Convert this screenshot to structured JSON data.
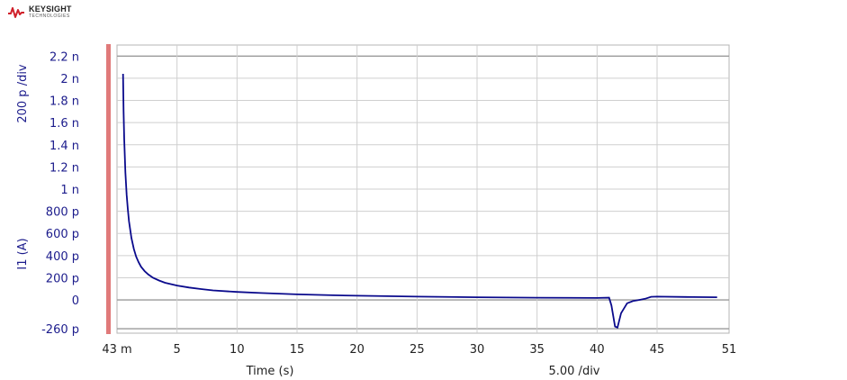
{
  "brand": {
    "name": "KEYSIGHT",
    "sub": "TECHNOLOGIES",
    "logo_color": "#d0202a"
  },
  "chart_data": {
    "type": "line",
    "title": "",
    "xlabel": "Time (s)",
    "ylabel": "I1 (A)",
    "y_scale_label": "200 p /div",
    "x_scale_label": "5.00  /div",
    "xlim": [
      0.043,
      51
    ],
    "ylim": [
      -2.6e-10,
      2.2e-09
    ],
    "grid": true,
    "x_ticks": [
      {
        "value": 0.043,
        "label": "43 m"
      },
      {
        "value": 5,
        "label": "5"
      },
      {
        "value": 10,
        "label": "10"
      },
      {
        "value": 15,
        "label": "15"
      },
      {
        "value": 20,
        "label": "20"
      },
      {
        "value": 25,
        "label": "25"
      },
      {
        "value": 30,
        "label": "30"
      },
      {
        "value": 35,
        "label": "35"
      },
      {
        "value": 40,
        "label": "40"
      },
      {
        "value": 45,
        "label": "45"
      },
      {
        "value": 51,
        "label": "51"
      }
    ],
    "y_ticks": [
      {
        "value": 2.2e-09,
        "label": "2.2 n"
      },
      {
        "value": 2e-09,
        "label": "2 n"
      },
      {
        "value": 1.8e-09,
        "label": "1.8 n"
      },
      {
        "value": 1.6e-09,
        "label": "1.6 n"
      },
      {
        "value": 1.4e-09,
        "label": "1.4 n"
      },
      {
        "value": 1.2e-09,
        "label": "1.2 n"
      },
      {
        "value": 1e-09,
        "label": "1 n"
      },
      {
        "value": 8e-10,
        "label": "800 p"
      },
      {
        "value": 6e-10,
        "label": "600 p"
      },
      {
        "value": 4e-10,
        "label": "400 p"
      },
      {
        "value": 2e-10,
        "label": "200 p"
      },
      {
        "value": 0,
        "label": "0"
      },
      {
        "value": -2.6e-10,
        "label": "-260 p"
      }
    ],
    "series": [
      {
        "name": "I1",
        "color": "#0a0a8c",
        "x": [
          0.5,
          0.55,
          0.6,
          0.7,
          0.8,
          0.9,
          1.0,
          1.2,
          1.4,
          1.6,
          1.8,
          2.0,
          2.3,
          2.6,
          3.0,
          3.5,
          4.0,
          5.0,
          6.0,
          7.0,
          8.0,
          10.0,
          12.0,
          15.0,
          18.0,
          20.0,
          25.0,
          30.0,
          35.0,
          40.0,
          41.0,
          41.2,
          41.5,
          41.7,
          42.0,
          42.5,
          43.0,
          43.5,
          44.0,
          44.5,
          45.0,
          48.0,
          50.0
        ],
        "y": [
          2.04e-09,
          1.7e-09,
          1.45e-09,
          1.15e-09,
          9.5e-10,
          8.2e-10,
          7.1e-10,
          5.6e-10,
          4.6e-10,
          3.9e-10,
          3.4e-10,
          3e-10,
          2.6e-10,
          2.3e-10,
          2e-10,
          1.75e-10,
          1.55e-10,
          1.3e-10,
          1.12e-10,
          9.8e-11,
          8.6e-11,
          7.2e-11,
          6.2e-11,
          5e-11,
          4.2e-11,
          3.8e-11,
          3e-11,
          2.4e-11,
          2e-11,
          1.8e-11,
          2e-11,
          -5e-11,
          -2.4e-10,
          -2.5e-10,
          -1.2e-10,
          -3e-11,
          -1e-11,
          0.0,
          1e-11,
          2.8e-11,
          3e-11,
          2.6e-11,
          2.4e-11
        ]
      }
    ]
  }
}
